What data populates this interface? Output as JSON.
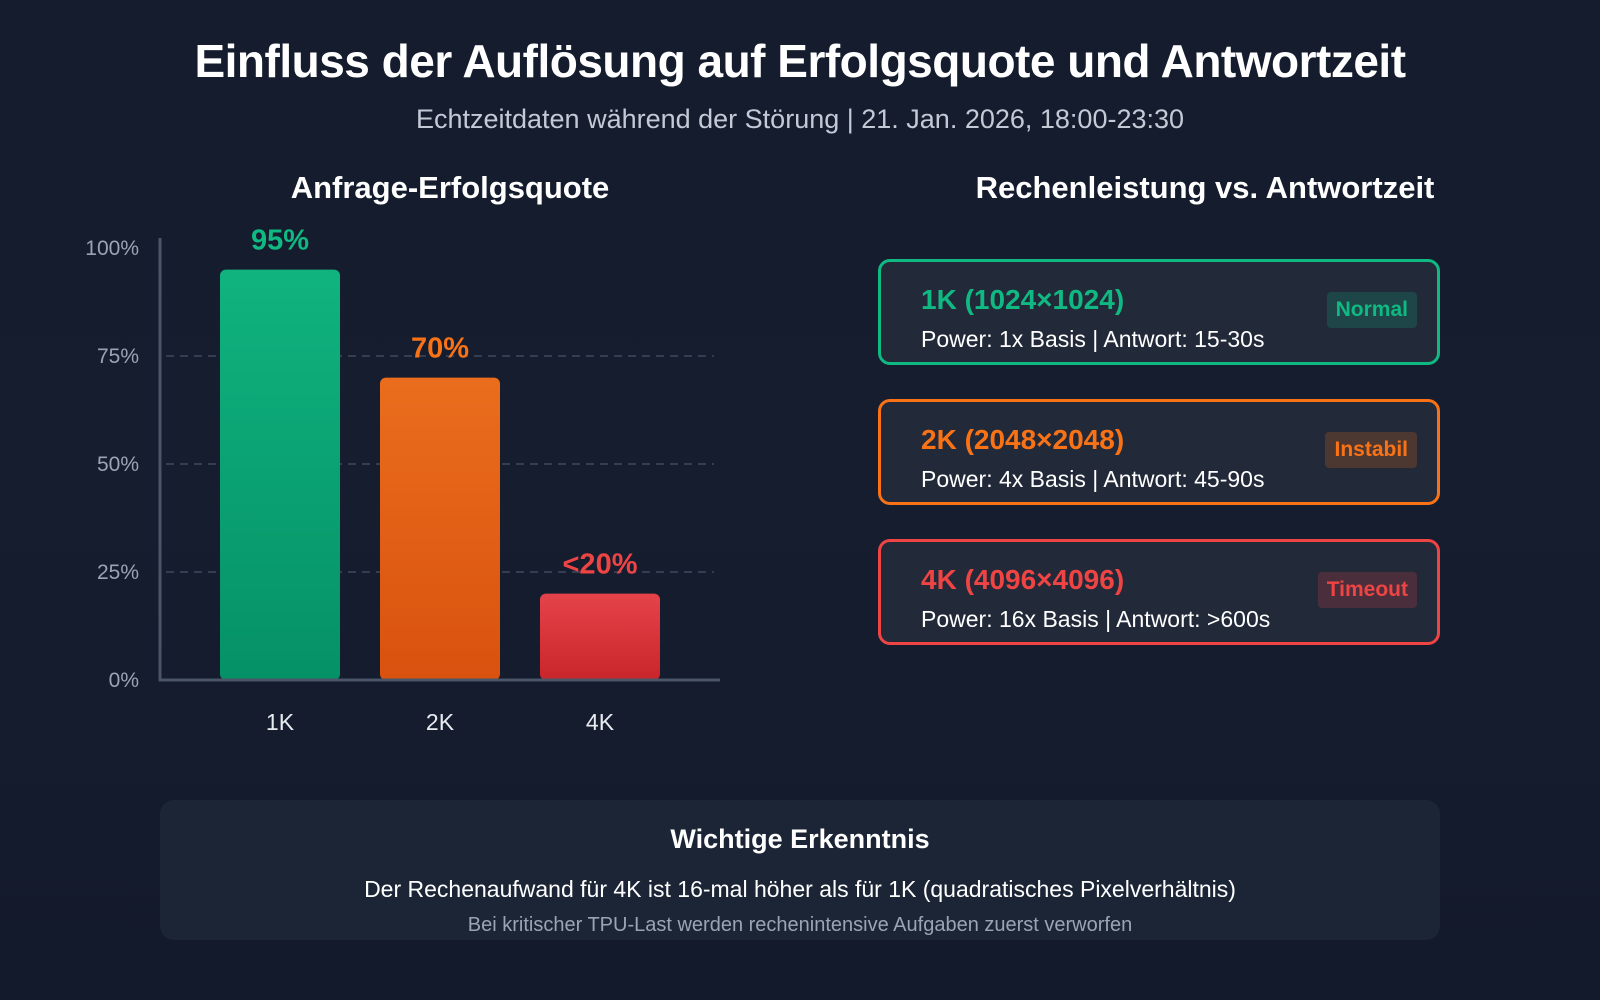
{
  "header": {
    "title": "Einfluss der Auflösung auf Erfolgsquote und Antwortzeit",
    "subtitle": "Echtzeitdaten während der Störung | 21. Jan. 2026, 18:00-23:30"
  },
  "chart_data": {
    "type": "bar",
    "title": "Anfrage-Erfolgsquote",
    "xlabel": "",
    "ylabel": "",
    "ylim": [
      0,
      100
    ],
    "yticks": [
      0,
      25,
      50,
      75,
      100
    ],
    "ytick_labels": [
      "0%",
      "25%",
      "50%",
      "75%",
      "100%"
    ],
    "grid": true,
    "categories": [
      "1K",
      "2K",
      "4K"
    ],
    "values": [
      95,
      70,
      20
    ],
    "value_labels": [
      "95%",
      "70%",
      "<20%"
    ],
    "colors": [
      "#10b981",
      "#f97316",
      "#ef4444"
    ]
  },
  "panel": {
    "title": "Rechenleistung vs. Antwortzeit",
    "cards": [
      {
        "title": "1K (1024×1024)",
        "desc": "Power: 1x Basis | Antwort: 15-30s",
        "badge": "Normal",
        "color": "#10b981"
      },
      {
        "title": "2K (2048×2048)",
        "desc": "Power: 4x Basis | Antwort: 45-90s",
        "badge": "Instabil",
        "color": "#f97316"
      },
      {
        "title": "4K (4096×4096)",
        "desc": "Power: 16x Basis | Antwort: >600s",
        "badge": "Timeout",
        "color": "#ef4444"
      }
    ]
  },
  "insight": {
    "title": "Wichtige Erkenntnis",
    "text": "Der Rechenaufwand für 4K ist 16-mal höher als für 1K (quadratisches Pixelverhältnis)",
    "subtext": "Bei kritischer TPU-Last werden rechenintensive Aufgaben zuerst verworfen"
  }
}
